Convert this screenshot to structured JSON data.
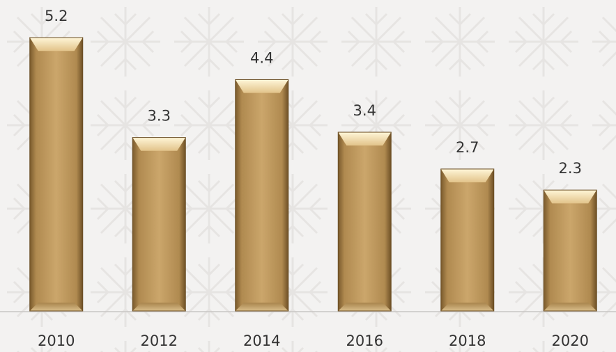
{
  "chart_data": {
    "type": "bar",
    "categories": [
      "2010",
      "2012",
      "2014",
      "2016",
      "2018",
      "2020"
    ],
    "values": [
      5.2,
      3.3,
      4.4,
      3.4,
      2.7,
      2.3
    ],
    "color": "#c49c5e"
  }
}
